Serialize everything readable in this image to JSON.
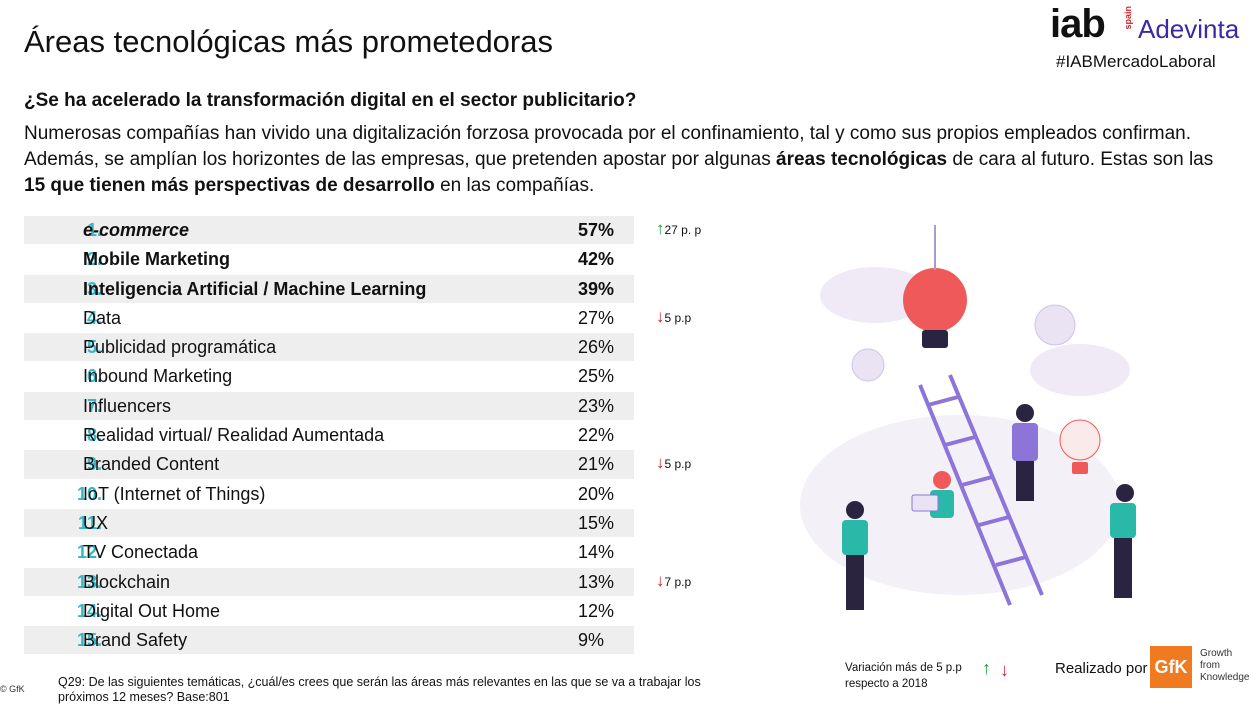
{
  "header": {
    "title": "Áreas tecnológicas más prometedoras",
    "logo_iab": "iab",
    "logo_spain": "spain",
    "logo_partner": "Adevinta",
    "hashtag": "#IABMercadoLaboral"
  },
  "question": "¿Se ha acelerado la transformación digital en el sector publicitario?",
  "intro": {
    "part1": "Numerosas compañías han vivido una digitalización forzosa provocada por el confinamiento, tal y como sus propios empleados confirman. Además, se amplían los horizontes de las empresas, que pretenden apostar por algunas ",
    "bold1": "áreas tecnológicas",
    "part2": " de cara al futuro. Estas son las ",
    "bold2": "15 que tienen más perspectivas de desarrollo",
    "part3": " en las compañías."
  },
  "ranking": [
    {
      "num": "1.",
      "label": "e-commerce",
      "pct": "57%",
      "change": "27 p. p",
      "dir": "up"
    },
    {
      "num": "2.",
      "label": "Mobile Marketing",
      "pct": "42%",
      "change": "",
      "dir": ""
    },
    {
      "num": "3.",
      "label": "Inteligencia Artificial / Machine Learning",
      "pct": "39%",
      "change": "",
      "dir": ""
    },
    {
      "num": "4.",
      "label": "Data",
      "pct": "27%",
      "change": "5 p.p",
      "dir": "down"
    },
    {
      "num": "5.",
      "label": "Publicidad programática",
      "pct": "26%",
      "change": "",
      "dir": ""
    },
    {
      "num": "6.",
      "label": "Inbound Marketing",
      "pct": "25%",
      "change": "",
      "dir": ""
    },
    {
      "num": "7.",
      "label": "Influencers",
      "pct": "23%",
      "change": "",
      "dir": ""
    },
    {
      "num": "8.",
      "label": "Realidad virtual/ Realidad Aumentada",
      "pct": "22%",
      "change": "",
      "dir": ""
    },
    {
      "num": "9.",
      "label": "Branded Content",
      "pct": "21%",
      "change": "5 p.p",
      "dir": "down"
    },
    {
      "num": "10.",
      "label": "IoT (Internet of Things)",
      "pct": "20%",
      "change": "",
      "dir": ""
    },
    {
      "num": "11.",
      "label": "UX",
      "pct": "15%",
      "change": "",
      "dir": ""
    },
    {
      "num": "12.",
      "label": "TV Conectada",
      "pct": "14%",
      "change": "",
      "dir": ""
    },
    {
      "num": "13.",
      "label": "Blockchain",
      "pct": "13%",
      "change": "7 p.p",
      "dir": "down"
    },
    {
      "num": "14.",
      "label": "Digital Out Home",
      "pct": "12%",
      "change": "",
      "dir": ""
    },
    {
      "num": "15.",
      "label": "Brand Safety",
      "pct": "9%",
      "change": "",
      "dir": ""
    }
  ],
  "footnote": "Q29: De las siguientes temáticas, ¿cuál/es crees que serán las áreas más relevantes en las que se va a trabajar los próximos 12 meses? Base:801",
  "gfk_copyright": "© GfK",
  "legend": {
    "line1": "Variación más de 5  p.p",
    "line2": "respecto a 2018"
  },
  "credit": {
    "realizado": "Realizado por",
    "gfk": "GfK",
    "tagline1": "Growth",
    "tagline2": "from",
    "tagline3": "Knowledge"
  },
  "colors": {
    "accent_number": "#33b7c8",
    "up": "#1a9a3a",
    "down": "#d2232a",
    "gfk_orange": "#f07a20",
    "adevinta": "#3a2aa8"
  }
}
